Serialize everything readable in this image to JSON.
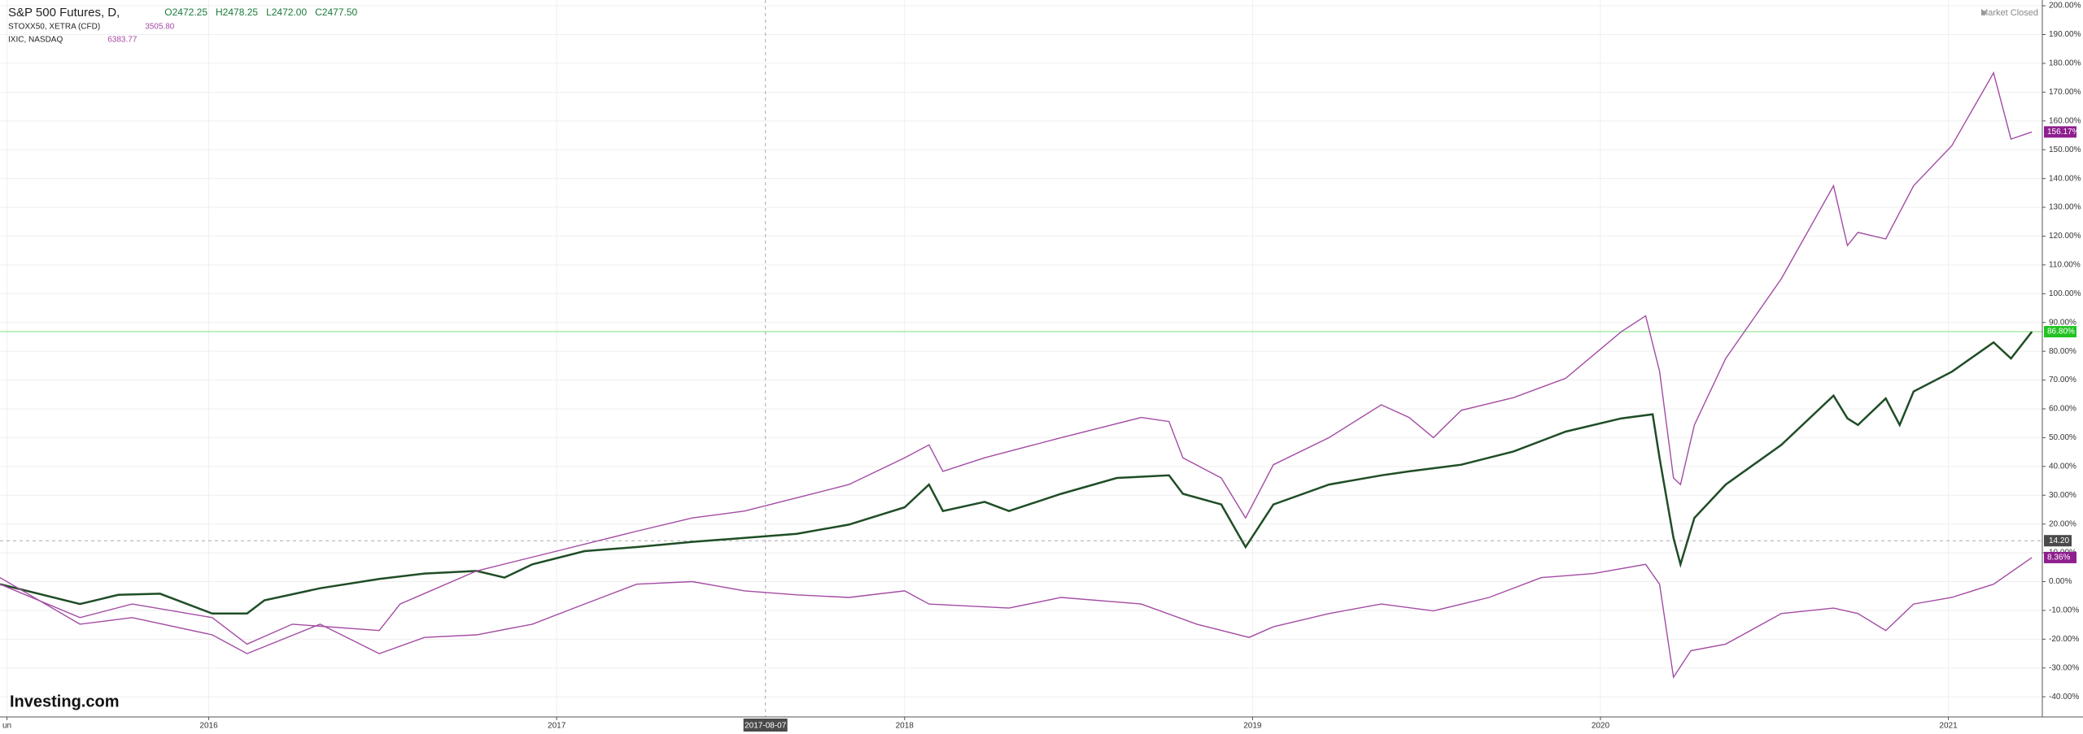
{
  "chart_data": {
    "type": "line",
    "xlim": [
      2015.4,
      2021.27
    ],
    "ylim": [
      -47,
      202
    ],
    "xticks": [
      {
        "value": 2015.42,
        "label": "un"
      },
      2016,
      2017,
      2018,
      2019,
      2020,
      2021
    ],
    "yticks": [
      {
        "value": 200,
        "label": "200.00%"
      },
      {
        "value": 190,
        "label": "190.00%"
      },
      {
        "value": 180,
        "label": "180.00%"
      },
      {
        "value": 170,
        "label": "170.00%"
      },
      {
        "value": 160,
        "label": "160.00%"
      },
      {
        "value": 150,
        "label": "150.00%"
      },
      {
        "value": 140,
        "label": "140.00%"
      },
      {
        "value": 130,
        "label": "130.00%"
      },
      {
        "value": 120,
        "label": "120.00%"
      },
      {
        "value": 110,
        "label": "110.00%"
      },
      {
        "value": 100,
        "label": "100.00%"
      },
      {
        "value": 90,
        "label": "90.00%"
      },
      {
        "value": 80,
        "label": "80.00%"
      },
      {
        "value": 70,
        "label": "70.00%"
      },
      {
        "value": 60,
        "label": "60.00%"
      },
      {
        "value": 50,
        "label": "50.00%"
      },
      {
        "value": 40,
        "label": "40.00%"
      },
      {
        "value": 30,
        "label": "30.00%"
      },
      {
        "value": 20,
        "label": "20.00%"
      },
      {
        "value": 10,
        "label": "10.00%"
      },
      {
        "value": 0,
        "label": "0.00%"
      },
      {
        "value": -10,
        "label": "-10.00%"
      },
      {
        "value": -20,
        "label": "-20.00%"
      },
      {
        "value": -30,
        "label": "-30.00%"
      },
      {
        "value": -40,
        "label": "-40.00%"
      }
    ],
    "grid": true,
    "crosshair": {
      "x": {
        "value": 2017.6,
        "label": "2017-08-07"
      },
      "y": {
        "value": 14.2,
        "label": "14.20"
      }
    },
    "market_status": "Market Closed",
    "logo": "Investing.com",
    "series": [
      {
        "name": "S&P 500 Futures, D,",
        "quote": [
          "O2472.25",
          "H2478.25",
          "L2472.00",
          "C2477.50"
        ],
        "color": "#1f4d26",
        "last_label": "86.80%",
        "badge_color": "#22c322",
        "x": [
          2015.4,
          2015.63,
          2015.74,
          2015.86,
          2016.01,
          2016.11,
          2016.16,
          2016.32,
          2016.49,
          2016.62,
          2016.77,
          2016.85,
          2016.93,
          2017.08,
          2017.23,
          2017.39,
          2017.54,
          2017.69,
          2017.84,
          2018.0,
          2018.07,
          2018.11,
          2018.23,
          2018.3,
          2018.45,
          2018.61,
          2018.76,
          2018.8,
          2018.91,
          2018.98,
          2019.06,
          2019.22,
          2019.37,
          2019.45,
          2019.6,
          2019.75,
          2019.9,
          2020.06,
          2020.15,
          2020.17,
          2020.21,
          2020.23,
          2020.27,
          2020.36,
          2020.52,
          2020.67,
          2020.71,
          2020.74,
          2020.82,
          2020.86,
          2020.9,
          2021.01,
          2021.13,
          2021.18,
          2021.24
        ],
        "values": [
          -0.9,
          -7.8,
          -4.6,
          -4.2,
          -11.1,
          -11.1,
          -6.5,
          -2.3,
          0.9,
          2.8,
          3.7,
          1.4,
          6.0,
          10.6,
          12.0,
          13.8,
          15.2,
          16.6,
          19.8,
          25.8,
          33.7,
          24.5,
          27.7,
          24.5,
          30.5,
          36.0,
          36.9,
          30.5,
          26.8,
          12.0,
          26.8,
          33.7,
          36.9,
          38.3,
          40.6,
          45.2,
          52.1,
          56.7,
          58.1,
          42.9,
          15.2,
          6.0,
          22.1,
          33.7,
          47.5,
          64.6,
          56.7,
          54.4,
          63.6,
          54.4,
          66.0,
          72.9,
          83.1,
          77.5,
          86.8
        ]
      },
      {
        "name": "STOXX50, XETRA (CFD)",
        "quote": [
          "3505.80"
        ],
        "color": "#a34ca3",
        "last_label": "8.36%",
        "badge_color": "#8e1f8e",
        "x": [
          2015.4,
          2015.63,
          2015.78,
          2016.01,
          2016.11,
          2016.32,
          2016.49,
          2016.62,
          2016.77,
          2016.93,
          2017.08,
          2017.23,
          2017.39,
          2017.54,
          2017.69,
          2017.84,
          2018.0,
          2018.07,
          2018.3,
          2018.45,
          2018.68,
          2018.84,
          2018.99,
          2019.06,
          2019.22,
          2019.37,
          2019.52,
          2019.68,
          2019.83,
          2019.98,
          2020.13,
          2020.17,
          2020.21,
          2020.26,
          2020.36,
          2020.52,
          2020.67,
          2020.74,
          2020.82,
          2020.9,
          2021.01,
          2021.13,
          2021.24
        ],
        "values": [
          1.4,
          -14.8,
          -12.5,
          -18.5,
          -25.0,
          -14.8,
          -25.0,
          -19.4,
          -18.5,
          -14.8,
          -7.8,
          -0.9,
          0.0,
          -3.2,
          -4.6,
          -5.5,
          -3.2,
          -7.8,
          -9.2,
          -5.5,
          -7.8,
          -14.8,
          -19.4,
          -15.7,
          -11.1,
          -7.8,
          -10.2,
          -5.5,
          1.4,
          2.8,
          6.0,
          -0.9,
          -33.2,
          -24.0,
          -21.7,
          -11.1,
          -9.2,
          -11.1,
          -17.0,
          -7.8,
          -5.5,
          -0.9,
          8.36
        ]
      },
      {
        "name": "IXIC, NASDAQ",
        "quote": [
          "6383.77"
        ],
        "color": "#a34ca3",
        "last_label": "156.17%",
        "badge_color": "#8e1f8e",
        "x": [
          2015.4,
          2015.63,
          2015.78,
          2016.01,
          2016.11,
          2016.24,
          2016.49,
          2016.55,
          2016.77,
          2017.0,
          2017.23,
          2017.39,
          2017.54,
          2017.69,
          2017.84,
          2018.0,
          2018.07,
          2018.11,
          2018.23,
          2018.45,
          2018.68,
          2018.76,
          2018.8,
          2018.91,
          2018.98,
          2019.06,
          2019.22,
          2019.37,
          2019.45,
          2019.52,
          2019.6,
          2019.75,
          2019.9,
          2020.06,
          2020.13,
          2020.17,
          2020.21,
          2020.23,
          2020.27,
          2020.36,
          2020.52,
          2020.67,
          2020.71,
          2020.74,
          2020.82,
          2020.9,
          2021.01,
          2021.13,
          2021.18,
          2021.24
        ],
        "values": [
          -0.9,
          -12.5,
          -7.8,
          -12.5,
          -21.7,
          -14.8,
          -17.0,
          -7.8,
          3.7,
          10.6,
          17.5,
          22.1,
          24.5,
          29.1,
          33.7,
          43.0,
          47.5,
          38.3,
          43.0,
          50.0,
          57.0,
          55.6,
          43.0,
          36.0,
          22.1,
          40.6,
          50.0,
          61.4,
          57.0,
          50.0,
          59.5,
          63.9,
          70.6,
          86.8,
          92.3,
          73.1,
          36.0,
          33.7,
          54.4,
          77.5,
          105.2,
          137.5,
          116.7,
          121.3,
          119.0,
          137.5,
          151.4,
          176.7,
          153.7,
          156.17
        ]
      }
    ]
  }
}
